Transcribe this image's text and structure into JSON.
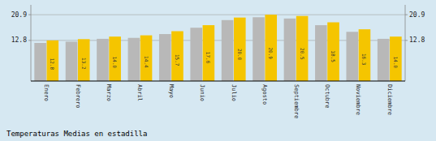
{
  "chart_data": {
    "type": "bar",
    "title": "Temperaturas Medias en estadilla",
    "categories": [
      "Enero",
      "Febrero",
      "Marzo",
      "Abril",
      "Mayo",
      "Junio",
      "Julio",
      "Agosto",
      "Septiembre",
      "Octubre",
      "Noviembre",
      "Diciembre"
    ],
    "series": [
      {
        "color": "#B8B8B8",
        "values": [
          12.0,
          12.4,
          13.3,
          13.6,
          14.8,
          16.8,
          19.2,
          20.1,
          19.7,
          17.6,
          15.5,
          13.3
        ]
      },
      {
        "color": "#F5C500",
        "values": [
          12.8,
          13.2,
          14.0,
          14.4,
          15.7,
          17.6,
          20.0,
          20.9,
          20.5,
          18.5,
          16.3,
          14.0
        ],
        "data_labels": true,
        "value_labels": [
          "12.8",
          "13.2",
          "14.0",
          "14.4",
          "15.7",
          "17.6",
          "20.0",
          "20.9",
          "20.5",
          "18.5",
          "16.3",
          "14.0"
        ]
      }
    ],
    "ylim": [
      0,
      24.0
    ],
    "yticks": [
      12.8,
      20.9
    ],
    "y2lim": [
      0,
      24.0
    ],
    "y2ticks": [
      12.8,
      20.9
    ],
    "grid": true
  }
}
